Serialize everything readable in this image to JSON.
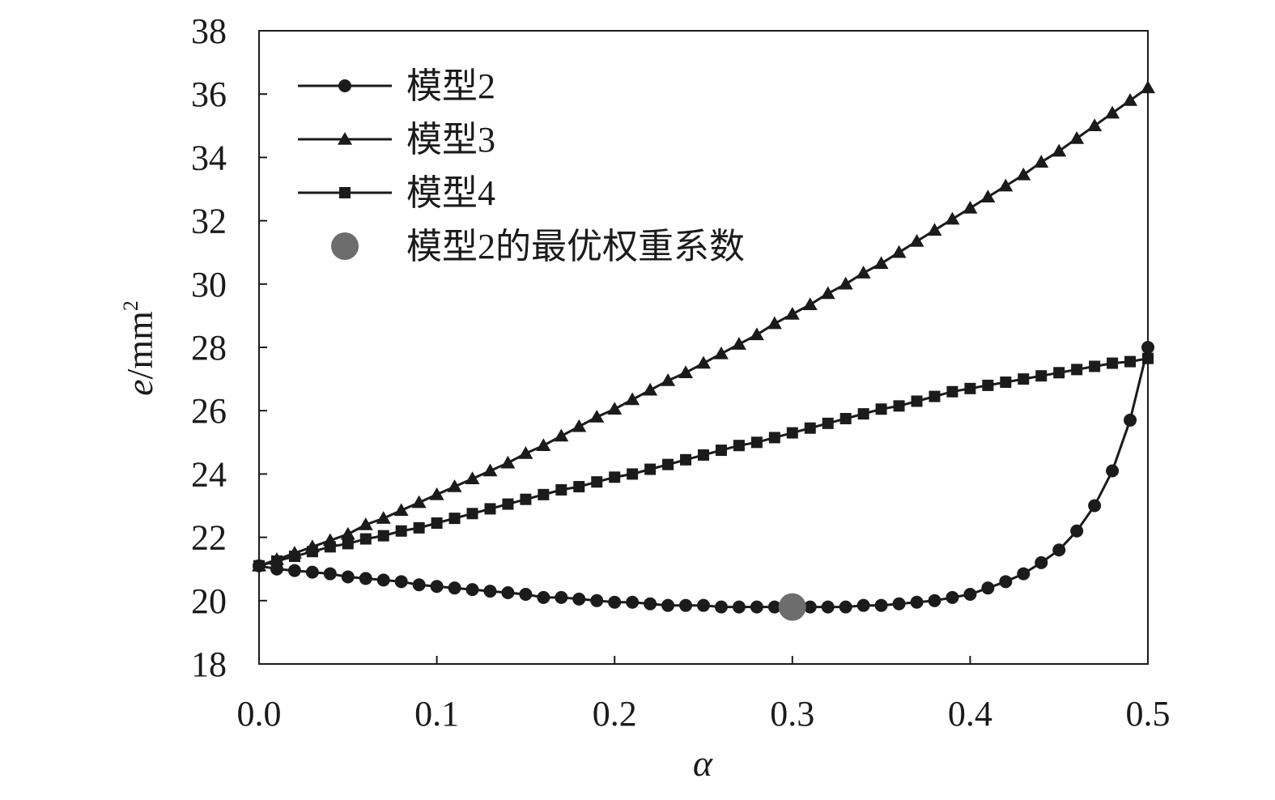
{
  "chart_data": {
    "type": "line",
    "xlabel": "α",
    "ylabel_main": "e/mm",
    "ylabel_sup": "2",
    "xlim": [
      0,
      0.5
    ],
    "ylim": [
      18,
      38
    ],
    "xticks": [
      "0.0",
      "0.1",
      "0.2",
      "0.3",
      "0.4",
      "0.5"
    ],
    "yticks": [
      "18",
      "20",
      "22",
      "24",
      "26",
      "28",
      "30",
      "32",
      "34",
      "36",
      "38"
    ],
    "grid": false,
    "legend_position": "top-left",
    "x": [
      0.0,
      0.01,
      0.02,
      0.03,
      0.04,
      0.05,
      0.06,
      0.07,
      0.08,
      0.09,
      0.1,
      0.11,
      0.12,
      0.13,
      0.14,
      0.15,
      0.16,
      0.17,
      0.18,
      0.19,
      0.2,
      0.21,
      0.22,
      0.23,
      0.24,
      0.25,
      0.26,
      0.27,
      0.28,
      0.29,
      0.3,
      0.31,
      0.32,
      0.33,
      0.34,
      0.35,
      0.36,
      0.37,
      0.38,
      0.39,
      0.4,
      0.41,
      0.42,
      0.43,
      0.44,
      0.45,
      0.46,
      0.47,
      0.48,
      0.49,
      0.5
    ],
    "series": [
      {
        "name": "模型2",
        "marker": "circle",
        "color": "#1b1b1b",
        "values": [
          21.1,
          21.0,
          20.95,
          20.9,
          20.85,
          20.75,
          20.7,
          20.65,
          20.6,
          20.5,
          20.45,
          20.4,
          20.35,
          20.3,
          20.25,
          20.2,
          20.1,
          20.1,
          20.05,
          20.0,
          19.95,
          19.95,
          19.9,
          19.85,
          19.85,
          19.85,
          19.8,
          19.8,
          19.8,
          19.8,
          19.8,
          19.8,
          19.8,
          19.8,
          19.85,
          19.85,
          19.9,
          19.95,
          20.0,
          20.1,
          20.2,
          20.4,
          20.6,
          20.85,
          21.2,
          21.6,
          22.2,
          23.0,
          24.1,
          25.7,
          28.0
        ]
      },
      {
        "name": "模型3",
        "marker": "triangle",
        "color": "#1b1b1b",
        "values": [
          21.1,
          21.3,
          21.5,
          21.7,
          21.9,
          22.1,
          22.4,
          22.6,
          22.85,
          23.1,
          23.35,
          23.6,
          23.85,
          24.1,
          24.35,
          24.65,
          24.9,
          25.2,
          25.5,
          25.8,
          26.05,
          26.35,
          26.65,
          26.95,
          27.2,
          27.5,
          27.8,
          28.1,
          28.4,
          28.75,
          29.05,
          29.35,
          29.7,
          30.0,
          30.35,
          30.65,
          31.0,
          31.35,
          31.7,
          32.05,
          32.4,
          32.75,
          33.1,
          33.45,
          33.85,
          34.2,
          34.6,
          35.0,
          35.4,
          35.8,
          36.2
        ]
      },
      {
        "name": "模型4",
        "marker": "square",
        "color": "#1b1b1b",
        "values": [
          21.1,
          21.25,
          21.4,
          21.55,
          21.7,
          21.8,
          21.95,
          22.05,
          22.2,
          22.3,
          22.45,
          22.6,
          22.75,
          22.9,
          23.05,
          23.2,
          23.35,
          23.5,
          23.6,
          23.75,
          23.9,
          24.0,
          24.15,
          24.3,
          24.45,
          24.6,
          24.75,
          24.9,
          25.0,
          25.15,
          25.3,
          25.45,
          25.6,
          25.75,
          25.9,
          26.05,
          26.15,
          26.3,
          26.45,
          26.6,
          26.7,
          26.8,
          26.9,
          27.0,
          27.1,
          27.2,
          27.3,
          27.4,
          27.5,
          27.55,
          27.65
        ]
      }
    ],
    "highlight": {
      "name": "模型2的最优权重系数",
      "marker": "big-circle",
      "color": "#6d6d6d",
      "x": 0.3,
      "y": 19.8
    }
  }
}
